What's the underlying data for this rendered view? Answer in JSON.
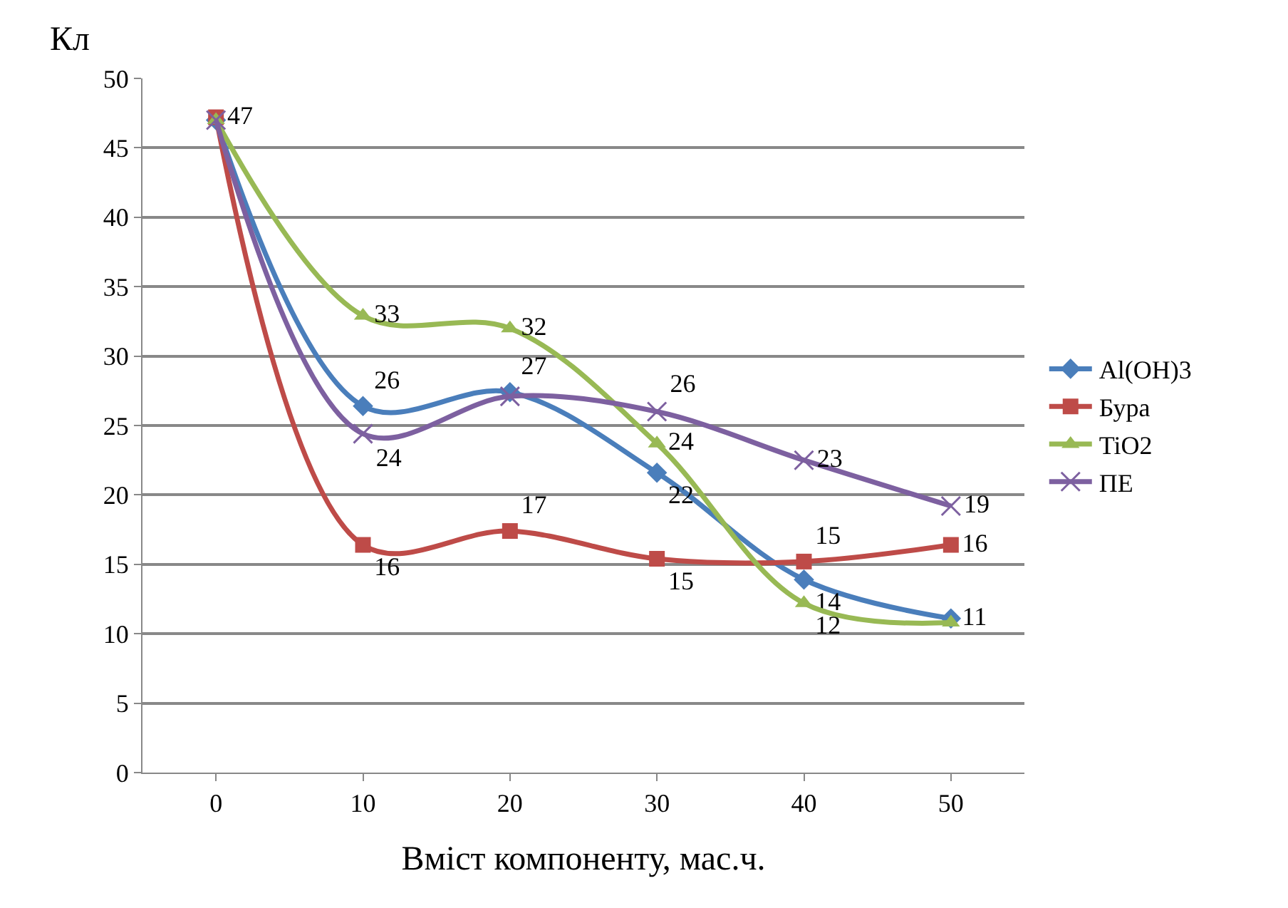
{
  "chart_data": {
    "type": "line",
    "xlabel": "Вміст компоненту, мас.ч.",
    "ylabel": "Кл",
    "categories": [
      "0",
      "10",
      "20",
      "30",
      "40",
      "50"
    ],
    "ylim": [
      0,
      50
    ],
    "yticks": [
      0,
      5,
      10,
      15,
      20,
      25,
      30,
      35,
      40,
      45,
      50
    ],
    "grid": "y",
    "legend": "right",
    "line_style": "solid",
    "series": [
      {
        "name": "Al(OH)3",
        "color": "#4a7ebb",
        "marker": "diamond",
        "values": [
          47,
          26.4,
          27.4,
          21.6,
          13.9,
          11.1
        ],
        "value_labels": [
          null,
          "26",
          "27",
          "22",
          "14",
          "11"
        ]
      },
      {
        "name": "Бура",
        "color": "#be4b48",
        "marker": "square",
        "values": [
          47.2,
          16.4,
          17.4,
          15.4,
          15.2,
          16.4
        ],
        "value_labels": [
          "47",
          "16",
          "17",
          "15",
          "15",
          "16"
        ]
      },
      {
        "name": "TiO2",
        "color": "#98b954",
        "marker": "triangle",
        "values": [
          47,
          32.9,
          32,
          23.7,
          12.2,
          10.8
        ],
        "value_labels": [
          null,
          "33",
          "32",
          "24",
          "12",
          null
        ]
      },
      {
        "name": "ПЕ",
        "color": "#7d60a0",
        "marker": "cross",
        "values": [
          47,
          24.4,
          27.1,
          26,
          22.5,
          19.2
        ],
        "value_labels": [
          null,
          "24",
          null,
          "26",
          "23",
          "19"
        ]
      }
    ]
  }
}
